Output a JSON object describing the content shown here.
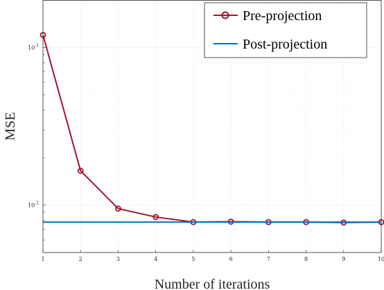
{
  "chart_data": {
    "type": "line",
    "title": "",
    "xlabel": "Number of iterations",
    "ylabel": "MSE",
    "x": [
      1,
      2,
      3,
      4,
      5,
      6,
      7,
      8,
      9,
      10
    ],
    "xlim": [
      1,
      10
    ],
    "ylim": [
      0.005,
      0.2
    ],
    "yscale": "log",
    "grid": true,
    "legend_position": "top-right",
    "x_tick_labels": [
      "1",
      "2",
      "3",
      "4",
      "5",
      "6",
      "7",
      "8",
      "9",
      "10"
    ],
    "y_tick_labels": [
      {
        "value": 0.1,
        "base": "10",
        "exp": "-1"
      },
      {
        "value": 0.01,
        "base": "10",
        "exp": "-2"
      }
    ],
    "series": [
      {
        "name": "Pre-projection",
        "color": "#a2142f",
        "marker": "circle",
        "values": [
          0.12,
          0.0165,
          0.0095,
          0.0084,
          0.0078,
          0.00785,
          0.0078,
          0.0078,
          0.00775,
          0.0078
        ]
      },
      {
        "name": "Post-projection",
        "color": "#0072bd",
        "marker": "none",
        "values": [
          0.0078,
          0.0078,
          0.0078,
          0.0078,
          0.0078,
          0.0078,
          0.0078,
          0.0078,
          0.0078,
          0.0078
        ]
      }
    ]
  }
}
